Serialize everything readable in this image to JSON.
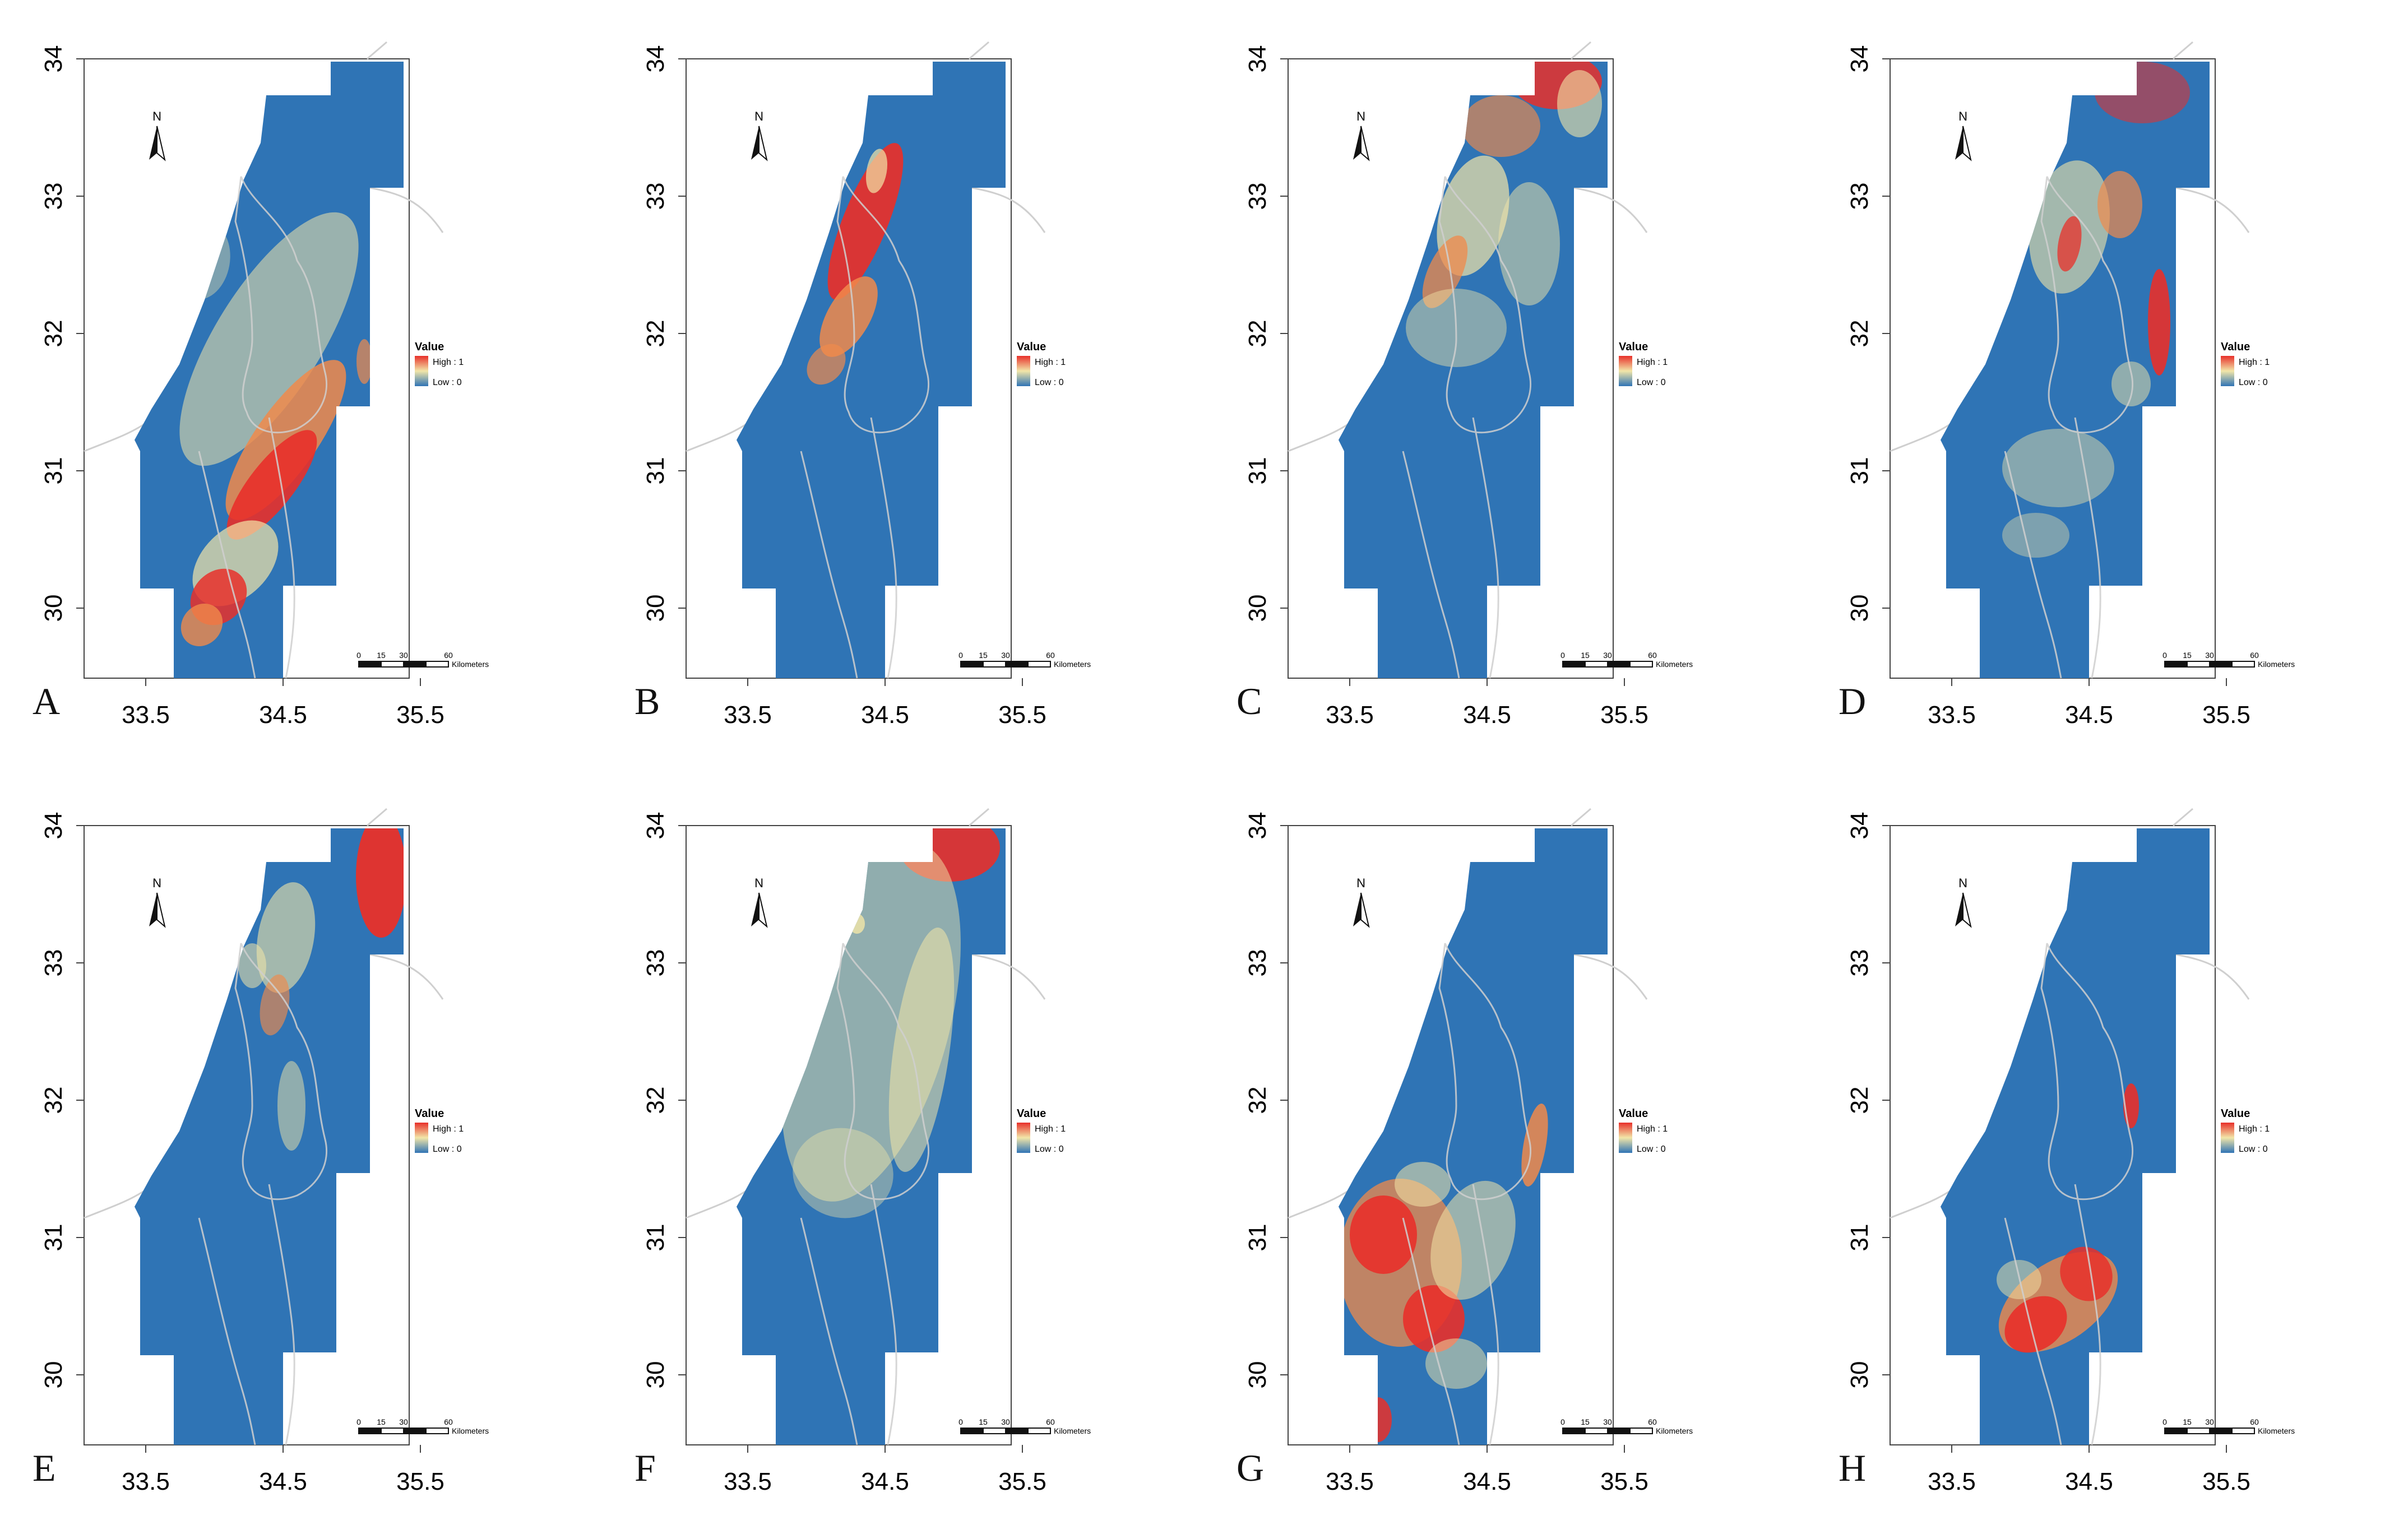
{
  "figure": {
    "panels": [
      {
        "letter": "A",
        "pattern": "A"
      },
      {
        "letter": "B",
        "pattern": "B"
      },
      {
        "letter": "C",
        "pattern": "C"
      },
      {
        "letter": "D",
        "pattern": "D"
      },
      {
        "letter": "E",
        "pattern": "E"
      },
      {
        "letter": "F",
        "pattern": "F"
      },
      {
        "letter": "G",
        "pattern": "G"
      },
      {
        "letter": "H",
        "pattern": "H"
      }
    ],
    "y_ticks": [
      "34",
      "33",
      "32",
      "31",
      "30"
    ],
    "x_ticks": [
      "33.5",
      "34.5",
      "35.5"
    ],
    "legend": {
      "title": "Value",
      "high": "High : 1",
      "low": "Low : 0"
    },
    "north_label": "N",
    "scalebar": {
      "ticks": [
        "0",
        "15",
        "30",
        "60"
      ],
      "unit": "Kilometers"
    },
    "colors": {
      "low": "#2f74b5",
      "mid": "#f2e6a8",
      "high": "#e8302a",
      "orange": "#f08a4b",
      "boundary": "#cfcfcf"
    }
  }
}
